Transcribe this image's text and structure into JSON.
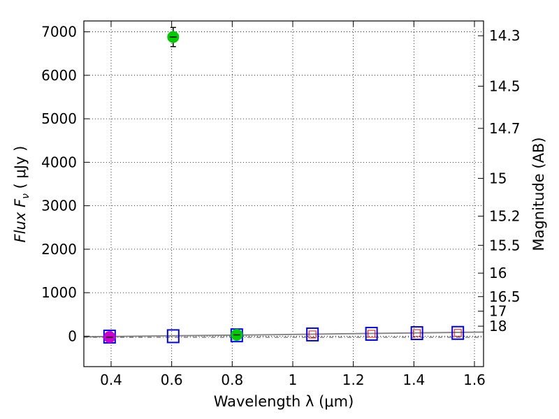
{
  "chart_data": {
    "type": "scatter",
    "xlabel": "Wavelength  λ (μm)",
    "ylabel": "Flux  F",
    "ylabel_sub": "ν",
    "ylabel_unit": "  ( μJy )",
    "y2label": "Magnitude (AB)",
    "xlim": [
      0.31,
      1.63
    ],
    "ylim": [
      -700,
      7250
    ],
    "grid": true,
    "x_ticks": [
      {
        "value": 0.4,
        "label": "0.4"
      },
      {
        "value": 0.6,
        "label": "0.6"
      },
      {
        "value": 0.8,
        "label": "0.8"
      },
      {
        "value": 1.0,
        "label": "1"
      },
      {
        "value": 1.2,
        "label": "1.2"
      },
      {
        "value": 1.4,
        "label": "1.4"
      },
      {
        "value": 1.6,
        "label": "1.6"
      }
    ],
    "y_ticks": [
      {
        "value": 0,
        "label": "0"
      },
      {
        "value": 1000,
        "label": "1000"
      },
      {
        "value": 2000,
        "label": "2000"
      },
      {
        "value": 3000,
        "label": "3000"
      },
      {
        "value": 4000,
        "label": "4000"
      },
      {
        "value": 5000,
        "label": "5000"
      },
      {
        "value": 6000,
        "label": "6000"
      },
      {
        "value": 7000,
        "label": "7000"
      }
    ],
    "magnitude_ticks": [
      {
        "value": 6910,
        "label": "14.3"
      },
      {
        "value": 5750,
        "label": "14.5"
      },
      {
        "value": 4780,
        "label": "14.7"
      },
      {
        "value": 3630,
        "label": "15"
      },
      {
        "value": 2760,
        "label": "15.2"
      },
      {
        "value": 2090,
        "label": "15.5"
      },
      {
        "value": 1450,
        "label": "16"
      },
      {
        "value": 910,
        "label": "16.5"
      },
      {
        "value": 575,
        "label": "17"
      },
      {
        "value": 230,
        "label": "18"
      }
    ],
    "series": [
      {
        "name": "model",
        "style": "open-square",
        "color": "#0000ff",
        "points": [
          {
            "x": 0.395,
            "y": -10
          },
          {
            "x": 0.605,
            "y": 0
          },
          {
            "x": 0.815,
            "y": 20
          },
          {
            "x": 1.065,
            "y": 40
          },
          {
            "x": 1.26,
            "y": 55
          },
          {
            "x": 1.41,
            "y": 70
          },
          {
            "x": 1.545,
            "y": 75
          }
        ]
      },
      {
        "name": "model-inner",
        "style": "small-square",
        "color": "#ff0000",
        "points": [
          {
            "x": 1.065,
            "y": 40
          },
          {
            "x": 1.26,
            "y": 55
          },
          {
            "x": 1.41,
            "y": 70
          },
          {
            "x": 1.545,
            "y": 75
          }
        ]
      },
      {
        "name": "observed-green",
        "style": "filled-circle",
        "color": "#00cc00",
        "points": [
          {
            "x": 0.605,
            "y": 6880,
            "err": 220
          },
          {
            "x": 0.815,
            "y": 30,
            "err": 0
          }
        ]
      },
      {
        "name": "observed-magenta",
        "style": "filled-circle",
        "color": "#cc00cc",
        "points": [
          {
            "x": 0.395,
            "y": -20,
            "err": 0
          }
        ]
      }
    ],
    "lines": [
      {
        "name": "sed-line",
        "color": "#888888",
        "style": "solid",
        "points": [
          [
            0.31,
            -15
          ],
          [
            1.0,
            40
          ],
          [
            1.63,
            95
          ]
        ]
      },
      {
        "name": "baseline-dashed",
        "color": "#444444",
        "style": "dashdot",
        "points": [
          [
            0.31,
            -25
          ],
          [
            1.63,
            -25
          ]
        ]
      }
    ]
  }
}
